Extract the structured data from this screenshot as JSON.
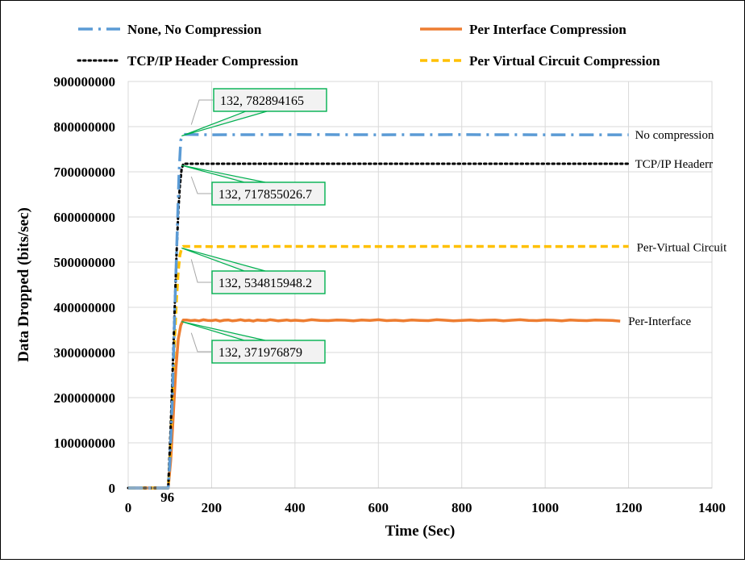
{
  "chart_data": {
    "type": "line",
    "title": "",
    "xlabel": "Time (Sec)",
    "ylabel": "Data Dropped (bits/sec)",
    "xlim": [
      0,
      1400
    ],
    "ylim": [
      0,
      900000000
    ],
    "x_ticks": [
      "0",
      "200",
      "400",
      "600",
      "800",
      "1000",
      "1200",
      "1400"
    ],
    "y_ticks": [
      "0",
      "100000000",
      "200000000",
      "300000000",
      "400000000",
      "500000000",
      "600000000",
      "700000000",
      "800000000",
      "900000000"
    ],
    "x_annotation": "96",
    "grid": true,
    "legend_position": "top",
    "series": [
      {
        "name": "None, No Compression",
        "color": "#5B9BD5",
        "dash": "dash-dot",
        "end_label": "No compression",
        "x": [
          0,
          96,
          100,
          106,
          112,
          118,
          122,
          126,
          132,
          200,
          400,
          600,
          800,
          1000,
          1200
        ],
        "y": [
          0,
          0,
          60000000,
          200000000,
          400000000,
          580000000,
          700000000,
          770000000,
          782894165,
          782000000,
          782500000,
          782000000,
          782300000,
          782000000,
          782000000
        ]
      },
      {
        "name": "Per Interface Compression",
        "color": "#ED7D31",
        "dash": "solid",
        "end_label": "Per-Interface",
        "x": [
          0,
          96,
          102,
          108,
          114,
          120,
          126,
          132,
          140,
          150,
          160,
          170,
          180,
          190,
          200,
          210,
          220,
          230,
          240,
          250,
          260,
          270,
          280,
          290,
          300,
          310,
          320,
          330,
          340,
          350,
          360,
          370,
          380,
          390,
          400,
          420,
          440,
          460,
          480,
          500,
          520,
          540,
          560,
          580,
          600,
          620,
          640,
          660,
          680,
          700,
          720,
          740,
          760,
          780,
          800,
          820,
          840,
          860,
          880,
          900,
          920,
          940,
          960,
          980,
          1000,
          1020,
          1040,
          1060,
          1080,
          1100,
          1120,
          1140,
          1160,
          1180
        ],
        "y": [
          0,
          0,
          60000000,
          160000000,
          260000000,
          330000000,
          360000000,
          371976879,
          372000000,
          370500000,
          371500000,
          370000000,
          372500000,
          371000000,
          370500000,
          372000000,
          369500000,
          371500000,
          372000000,
          370000000,
          371000000,
          372500000,
          370500000,
          371500000,
          369500000,
          372000000,
          371000000,
          370500000,
          372500000,
          371500000,
          370000000,
          371000000,
          372000000,
          370500000,
          371500000,
          370000000,
          372500000,
          371000000,
          370500000,
          372000000,
          371500000,
          370000000,
          372000000,
          371000000,
          372500000,
          370500000,
          371500000,
          370000000,
          372000000,
          371000000,
          370500000,
          372500000,
          371500000,
          370000000,
          371000000,
          372000000,
          370500000,
          371500000,
          372000000,
          370000000,
          371500000,
          372500000,
          371000000,
          370500000,
          372000000,
          371500000,
          370000000,
          372000000,
          371000000,
          370500000,
          372000000,
          371500000,
          371000000,
          369500000
        ]
      },
      {
        "name": "TCP/IP Header Compression",
        "color": "#000000",
        "dash": "dotted",
        "end_label": "TCP/IP Headerr",
        "x": [
          0,
          96,
          100,
          104,
          108,
          112,
          116,
          120,
          124,
          128,
          132,
          200,
          400,
          600,
          800,
          1000,
          1200
        ],
        "y": [
          0,
          0,
          90000000,
          190000000,
          300000000,
          410000000,
          520000000,
          610000000,
          670000000,
          705000000,
          717855026.7,
          717800000,
          717900000,
          717800000,
          717900000,
          717800000,
          717800000
        ]
      },
      {
        "name": "Per Virtual Circuit Compression",
        "color": "#FFC000",
        "dash": "dashed",
        "end_label": "Per-Virtual Circuit",
        "x": [
          0,
          96,
          100,
          104,
          108,
          112,
          116,
          120,
          124,
          128,
          132,
          200,
          400,
          600,
          800,
          1000,
          1200
        ],
        "y": [
          0,
          0,
          70000000,
          160000000,
          250000000,
          340000000,
          420000000,
          480000000,
          515000000,
          530000000,
          534815948.2,
          534500000,
          534800000,
          534600000,
          534800000,
          534600000,
          534800000
        ]
      }
    ],
    "annotations": [
      {
        "text": "132, 782894165",
        "x": 132,
        "y": 782894165
      },
      {
        "text": "132, 717855026.7",
        "x": 132,
        "y": 717855026.7
      },
      {
        "text": "132, 534815948.2",
        "x": 132,
        "y": 534815948.2
      },
      {
        "text": "132, 371976879",
        "x": 132,
        "y": 371976879
      }
    ]
  }
}
